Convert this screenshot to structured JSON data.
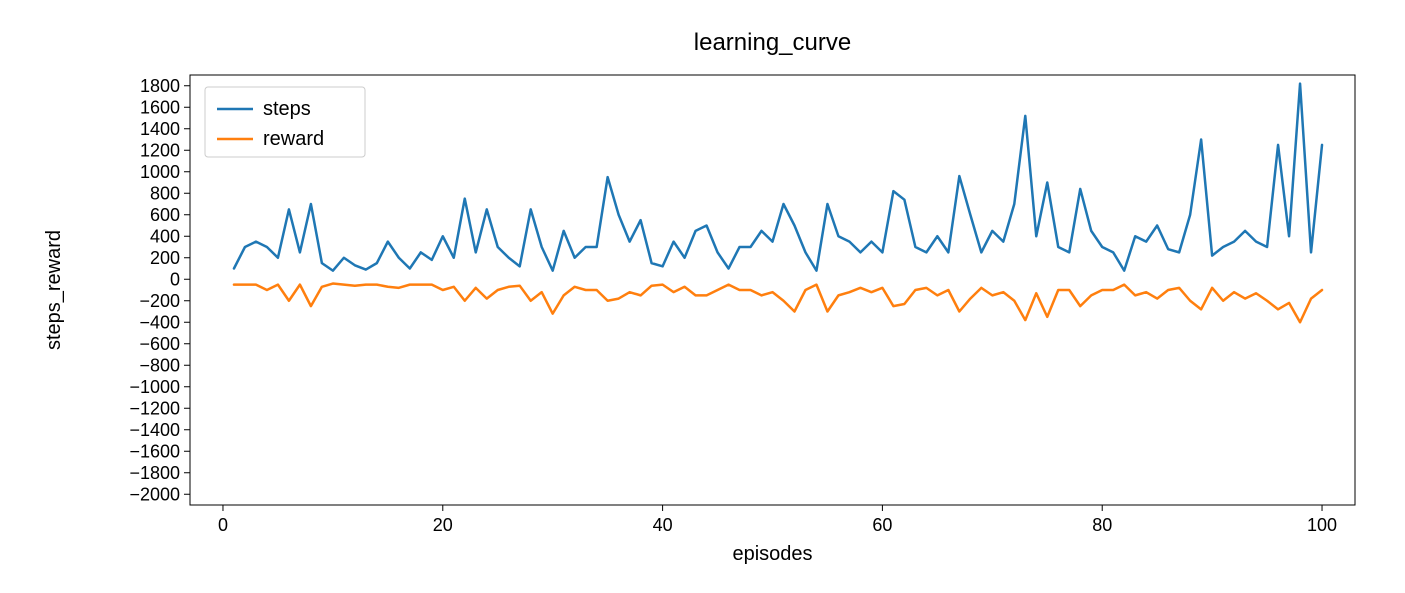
{
  "chart": {
    "type": "line",
    "title": "learning_curve",
    "title_fontsize": 24,
    "xlabel": "episodes",
    "ylabel": "steps_reward",
    "label_fontsize": 20,
    "tick_fontsize": 18,
    "background_color": "#ffffff",
    "plot_border_color": "#000000",
    "legend": {
      "position": "upper-left",
      "border_color": "#cccccc",
      "items": [
        "steps",
        "reward"
      ]
    },
    "xlim": [
      -3,
      103
    ],
    "ylim": [
      -2100,
      1900
    ],
    "xticks": [
      0,
      20,
      40,
      60,
      80,
      100
    ],
    "yticks": [
      -2000,
      -1800,
      -1600,
      -1400,
      -1200,
      -1000,
      -800,
      -600,
      -400,
      -200,
      0,
      200,
      400,
      600,
      800,
      1000,
      1200,
      1400,
      1600,
      1800
    ],
    "series": [
      {
        "name": "steps",
        "color": "#1f77b4",
        "line_width": 2.5,
        "x": [
          1,
          2,
          3,
          4,
          5,
          6,
          7,
          8,
          9,
          10,
          11,
          12,
          13,
          14,
          15,
          16,
          17,
          18,
          19,
          20,
          21,
          22,
          23,
          24,
          25,
          26,
          27,
          28,
          29,
          30,
          31,
          32,
          33,
          34,
          35,
          36,
          37,
          38,
          39,
          40,
          41,
          42,
          43,
          44,
          45,
          46,
          47,
          48,
          49,
          50,
          51,
          52,
          53,
          54,
          55,
          56,
          57,
          58,
          59,
          60,
          61,
          62,
          63,
          64,
          65,
          66,
          67,
          68,
          69,
          70,
          71,
          72,
          73,
          74,
          75,
          76,
          77,
          78,
          79,
          80,
          81,
          82,
          83,
          84,
          85,
          86,
          87,
          88,
          89,
          90,
          91,
          92,
          93,
          94,
          95,
          96,
          97,
          98,
          99,
          100
        ],
        "y": [
          100,
          300,
          350,
          300,
          200,
          650,
          250,
          700,
          150,
          80,
          200,
          130,
          90,
          150,
          350,
          200,
          100,
          250,
          180,
          400,
          200,
          750,
          250,
          650,
          300,
          200,
          120,
          650,
          300,
          80,
          450,
          200,
          300,
          300,
          950,
          600,
          350,
          550,
          150,
          120,
          350,
          200,
          450,
          500,
          250,
          100,
          300,
          300,
          450,
          350,
          700,
          500,
          250,
          80,
          700,
          400,
          350,
          250,
          350,
          250,
          820,
          740,
          300,
          250,
          400,
          250,
          960,
          600,
          250,
          450,
          350,
          700,
          1520,
          400,
          900,
          300,
          250,
          840,
          450,
          300,
          250,
          80,
          400,
          350,
          500,
          280,
          250,
          600,
          1300,
          220,
          300,
          350,
          450,
          350,
          300,
          1250,
          400,
          1820,
          250,
          1250
        ]
      },
      {
        "name": "reward",
        "color": "#ff7f0e",
        "line_width": 2.5,
        "x": [
          1,
          2,
          3,
          4,
          5,
          6,
          7,
          8,
          9,
          10,
          11,
          12,
          13,
          14,
          15,
          16,
          17,
          18,
          19,
          20,
          21,
          22,
          23,
          24,
          25,
          26,
          27,
          28,
          29,
          30,
          31,
          32,
          33,
          34,
          35,
          36,
          37,
          38,
          39,
          40,
          41,
          42,
          43,
          44,
          45,
          46,
          47,
          48,
          49,
          50,
          51,
          52,
          53,
          54,
          55,
          56,
          57,
          58,
          59,
          60,
          61,
          62,
          63,
          64,
          65,
          66,
          67,
          68,
          69,
          70,
          71,
          72,
          73,
          74,
          75,
          76,
          77,
          78,
          79,
          80,
          81,
          82,
          83,
          84,
          85,
          86,
          87,
          88,
          89,
          90,
          91,
          92,
          93,
          94,
          95,
          96,
          97,
          98,
          99,
          100
        ],
        "y": [
          -50,
          -50,
          -50,
          -100,
          -50,
          -200,
          -50,
          -250,
          -70,
          -40,
          -50,
          -60,
          -50,
          -50,
          -70,
          -80,
          -50,
          -50,
          -50,
          -100,
          -70,
          -200,
          -80,
          -180,
          -100,
          -70,
          -60,
          -200,
          -120,
          -320,
          -150,
          -70,
          -100,
          -100,
          -200,
          -180,
          -120,
          -150,
          -60,
          -50,
          -120,
          -70,
          -150,
          -150,
          -100,
          -50,
          -100,
          -100,
          -150,
          -120,
          -200,
          -300,
          -100,
          -50,
          -300,
          -150,
          -120,
          -80,
          -120,
          -80,
          -250,
          -230,
          -100,
          -80,
          -150,
          -100,
          -300,
          -180,
          -80,
          -150,
          -120,
          -200,
          -380,
          -130,
          -350,
          -100,
          -100,
          -250,
          -150,
          -100,
          -100,
          -50,
          -150,
          -120,
          -180,
          -100,
          -80,
          -200,
          -280,
          -80,
          -200,
          -120,
          -180,
          -130,
          -200,
          -280,
          -220,
          -400,
          -180,
          -100
        ]
      }
    ]
  }
}
